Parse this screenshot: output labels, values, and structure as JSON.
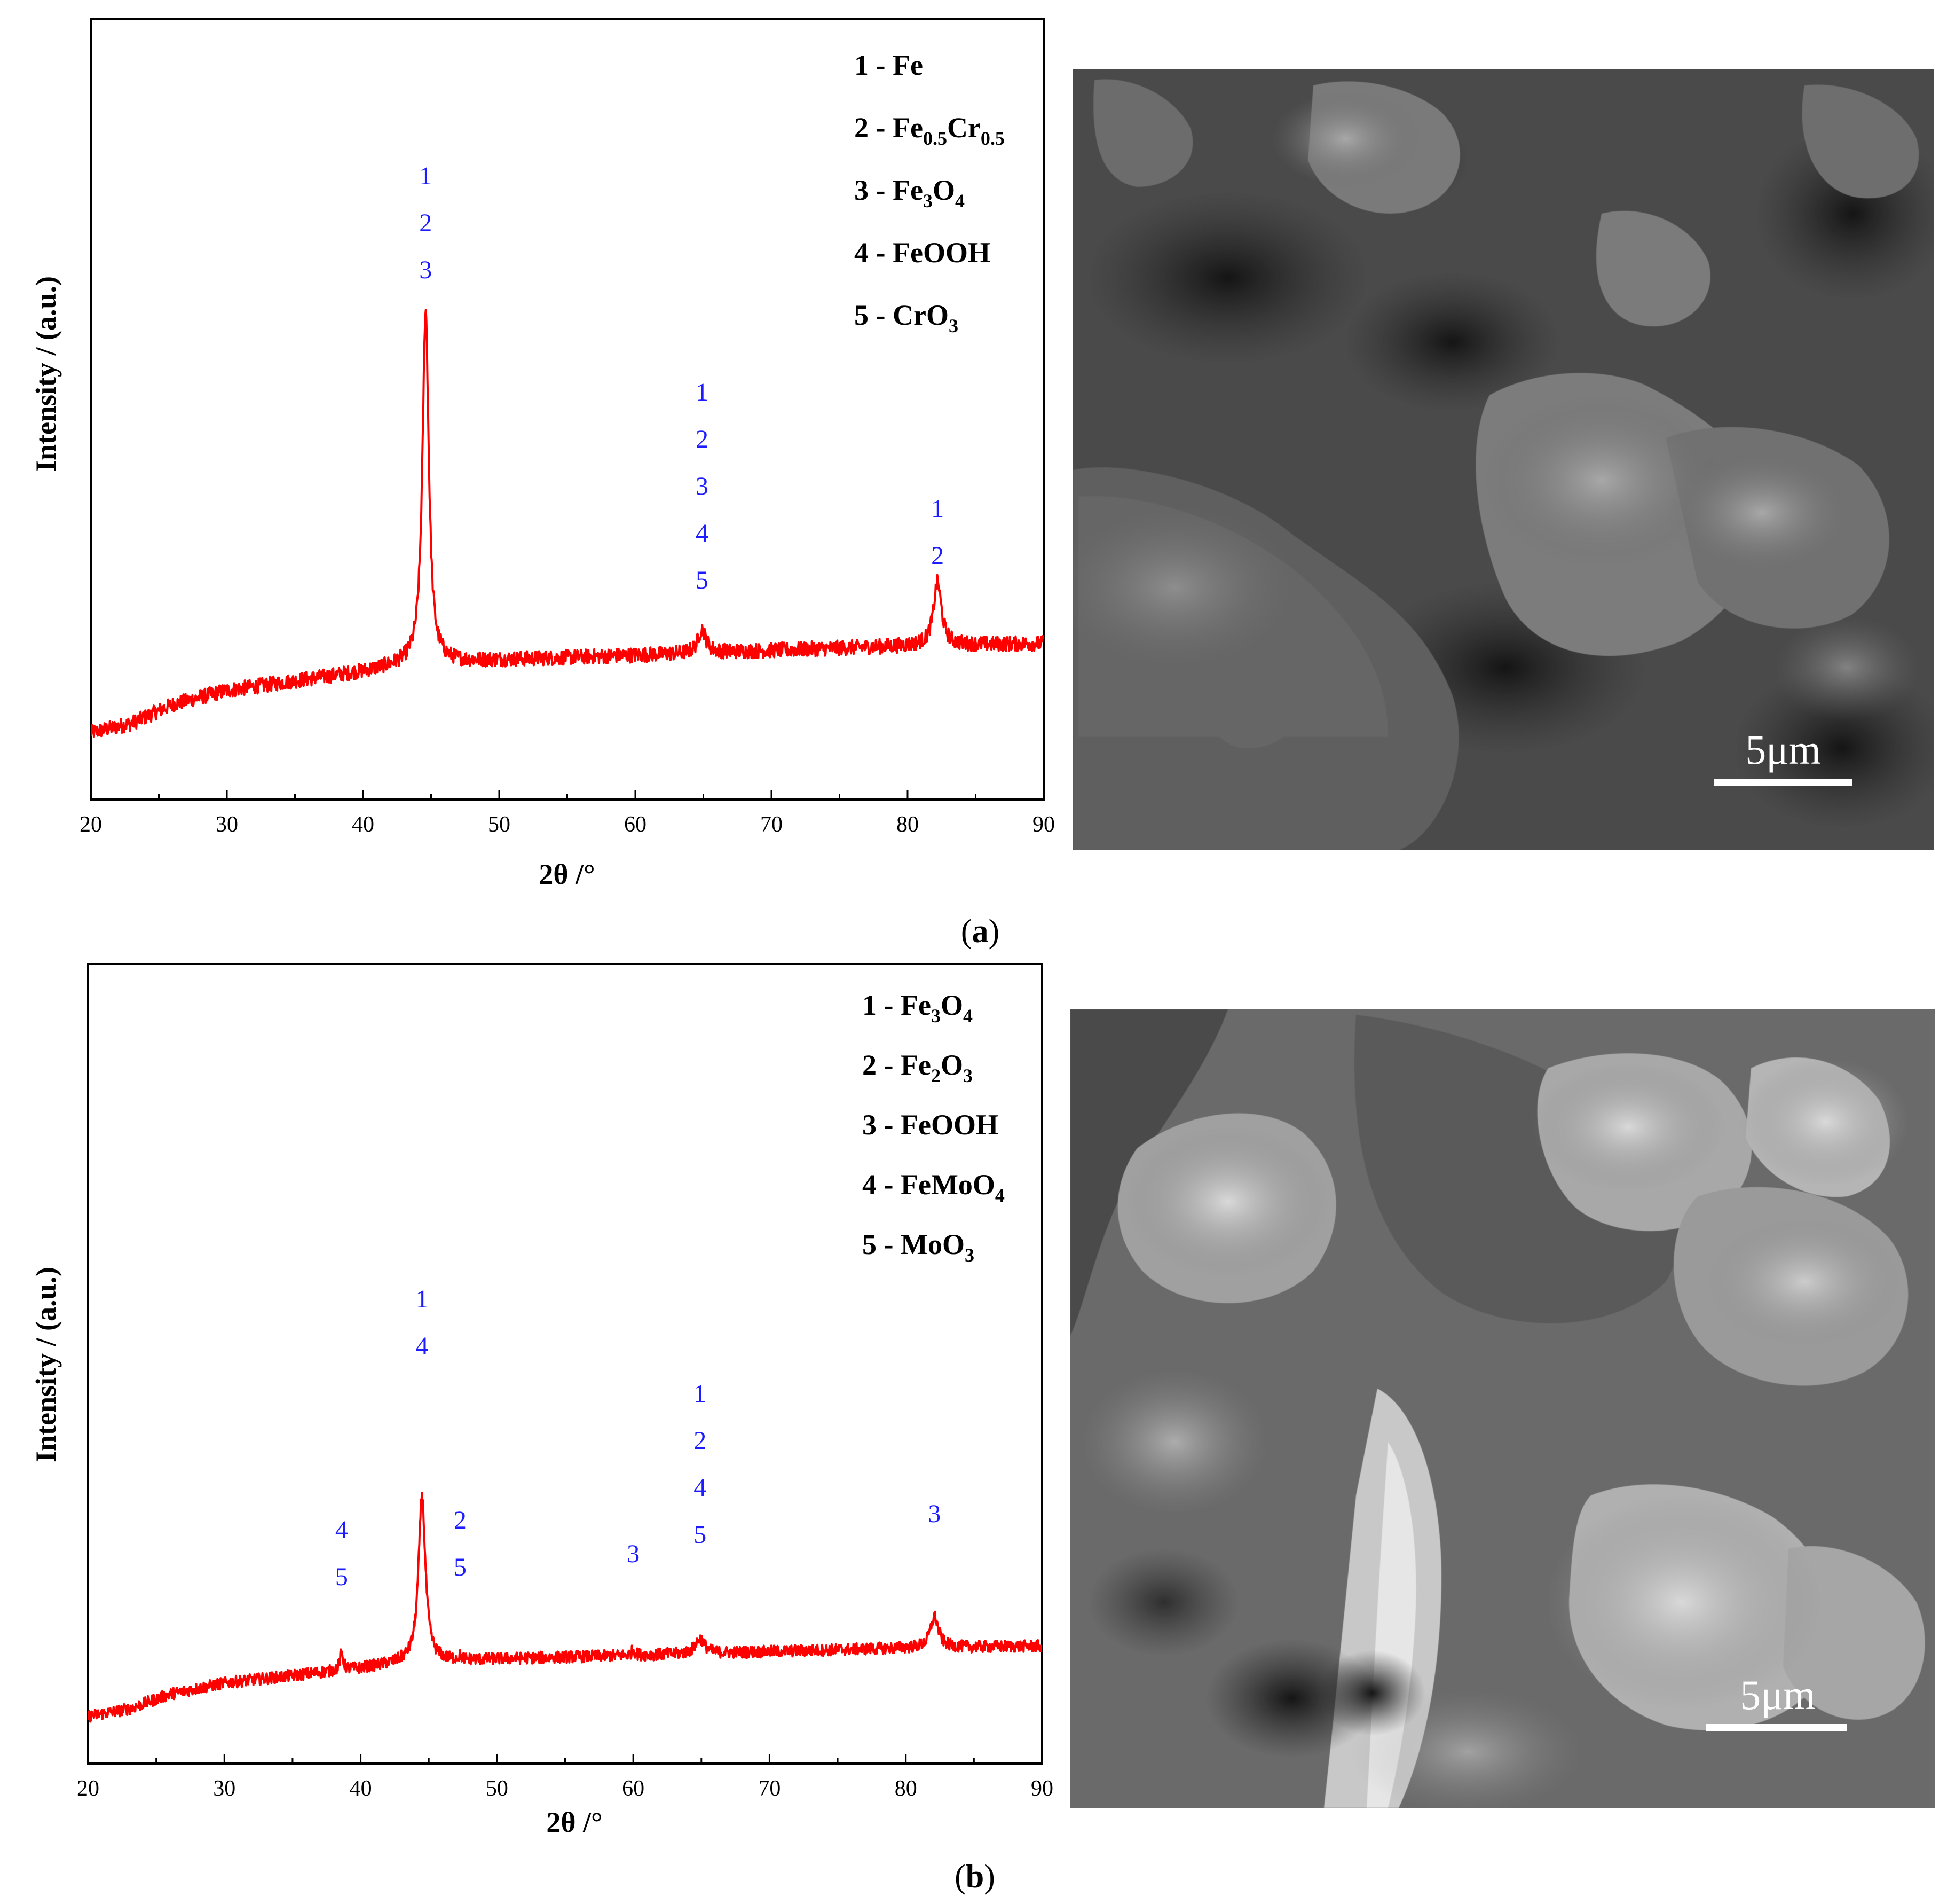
{
  "colors": {
    "trace": "#ff0000",
    "peak_label": "#1c1cff",
    "axis": "#000000",
    "scalebar": "#ffffff"
  },
  "panels": [
    {
      "id": "a",
      "caption_open": "(",
      "caption_letter": "a",
      "caption_close": ")",
      "legend": [
        {
          "num": "1",
          "parts": [
            [
              "Fe",
              ""
            ]
          ]
        },
        {
          "num": "2",
          "parts": [
            [
              "Fe",
              "0.5"
            ],
            [
              "Cr",
              "0.5"
            ]
          ]
        },
        {
          "num": "3",
          "parts": [
            [
              "Fe",
              "3"
            ],
            [
              "O",
              "4"
            ]
          ]
        },
        {
          "num": "4",
          "parts": [
            [
              "FeOOH",
              ""
            ]
          ]
        },
        {
          "num": "5",
          "parts": [
            [
              "CrO",
              "3"
            ]
          ]
        }
      ],
      "scalebar_label": "5μm"
    },
    {
      "id": "b",
      "caption_open": "(",
      "caption_letter": "b",
      "caption_close": ")",
      "legend": [
        {
          "num": "1",
          "parts": [
            [
              "Fe",
              "3"
            ],
            [
              "O",
              "4"
            ]
          ]
        },
        {
          "num": "2",
          "parts": [
            [
              "Fe",
              "2"
            ],
            [
              "O",
              "3"
            ]
          ]
        },
        {
          "num": "3",
          "parts": [
            [
              "FeOOH",
              ""
            ]
          ]
        },
        {
          "num": "4",
          "parts": [
            [
              "FeMoO",
              "4"
            ]
          ]
        },
        {
          "num": "5",
          "parts": [
            [
              "MoO",
              "3"
            ]
          ]
        }
      ],
      "scalebar_label": "5μm"
    }
  ],
  "chart_data": [
    {
      "type": "line",
      "title": "",
      "xlabel": "2θ /°",
      "ylabel": "Intensity / (a.u.)",
      "xlim": [
        20,
        90
      ],
      "ylim": [
        0,
        100
      ],
      "yticks_visible": false,
      "x_ticks": [
        20,
        30,
        40,
        50,
        60,
        70,
        80,
        90
      ],
      "baseline": [
        [
          20,
          10
        ],
        [
          23,
          12
        ],
        [
          26,
          16
        ],
        [
          30,
          19
        ],
        [
          35,
          21
        ],
        [
          40,
          23
        ],
        [
          43,
          24.5
        ],
        [
          50,
          25.5
        ],
        [
          60,
          26.5
        ],
        [
          70,
          27.5
        ],
        [
          80,
          28.5
        ],
        [
          90,
          29
        ]
      ],
      "peaks": [
        {
          "x": 44.6,
          "height": 100,
          "width": 0.28
        },
        {
          "x": 64.9,
          "height": 32,
          "width": 0.35
        },
        {
          "x": 82.2,
          "height": 42,
          "width": 0.35
        }
      ],
      "peak_annotations": [
        {
          "x": 44.6,
          "labels": [
            "1",
            "2",
            "3"
          ]
        },
        {
          "x": 64.9,
          "labels": [
            "1",
            "2",
            "3",
            "4",
            "5"
          ]
        },
        {
          "x": 82.2,
          "labels": [
            "1",
            "2"
          ]
        }
      ]
    },
    {
      "type": "line",
      "title": "",
      "xlabel": "2θ /°",
      "ylabel": "Intensity / (a.u.)",
      "xlim": [
        20,
        90
      ],
      "ylim": [
        0,
        100
      ],
      "yticks_visible": false,
      "x_ticks": [
        20,
        30,
        40,
        50,
        60,
        70,
        80,
        90
      ],
      "baseline": [
        [
          20,
          10
        ],
        [
          23,
          12
        ],
        [
          26,
          16
        ],
        [
          30,
          19
        ],
        [
          35,
          21
        ],
        [
          40,
          23
        ],
        [
          43,
          24.5
        ],
        [
          50,
          25.5
        ],
        [
          60,
          26.5
        ],
        [
          70,
          27.5
        ],
        [
          80,
          28.5
        ],
        [
          90,
          29
        ]
      ],
      "peaks": [
        {
          "x": 38.6,
          "height": 27,
          "width": 0.15
        },
        {
          "x": 44.5,
          "height": 70,
          "width": 0.3
        },
        {
          "x": 47.3,
          "height": 26,
          "width": 0.15
        },
        {
          "x": 60.0,
          "height": 28,
          "width": 0.15
        },
        {
          "x": 64.9,
          "height": 31,
          "width": 0.4
        },
        {
          "x": 82.1,
          "height": 37,
          "width": 0.35
        }
      ],
      "peak_annotations": [
        {
          "x": 38.6,
          "labels": [
            "4",
            "5"
          ]
        },
        {
          "x": 44.5,
          "labels": [
            "1",
            "4"
          ]
        },
        {
          "x": 47.3,
          "labels": [
            "2",
            "5"
          ]
        },
        {
          "x": 60.0,
          "labels": [
            "3"
          ]
        },
        {
          "x": 64.9,
          "labels": [
            "1",
            "2",
            "4",
            "5"
          ]
        },
        {
          "x": 82.1,
          "labels": [
            "3"
          ]
        }
      ]
    }
  ]
}
